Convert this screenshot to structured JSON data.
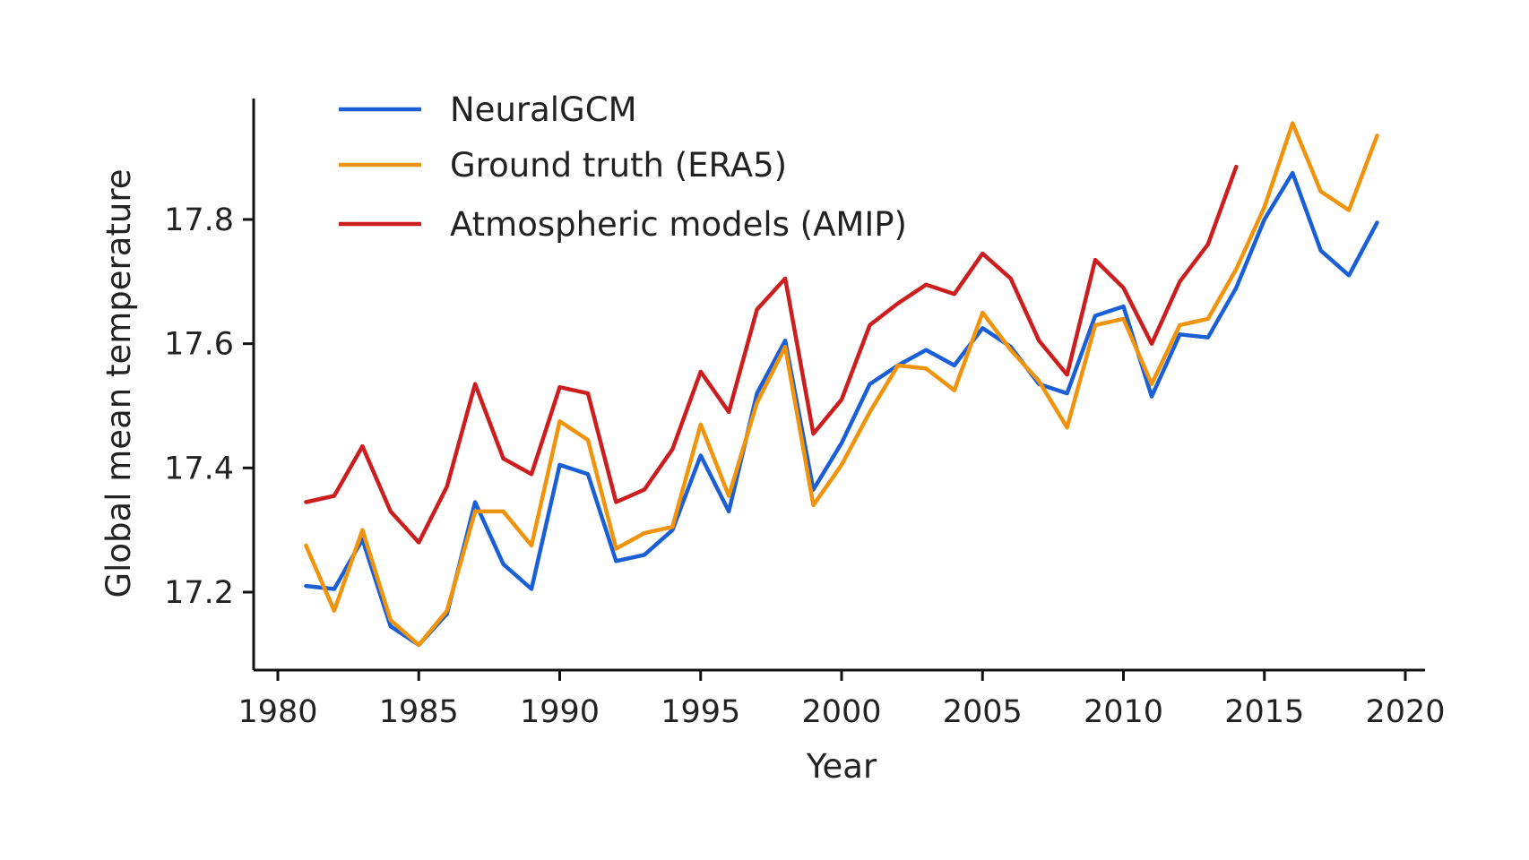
{
  "chart_data": {
    "type": "line",
    "xlabel": "Year",
    "ylabel": "Global mean temperature",
    "xlim": [
      1979,
      2021
    ],
    "ylim": [
      17.09,
      17.99
    ],
    "xticks": [
      1980,
      1985,
      1990,
      1995,
      2000,
      2005,
      2010,
      2015,
      2020
    ],
    "yticks": [
      17.2,
      17.4,
      17.6,
      17.8
    ],
    "grid": false,
    "legend_position": "top-left",
    "series": [
      {
        "name": "NeuralGCM",
        "color": "#1a5fd6",
        "x": [
          1981,
          1982,
          1983,
          1984,
          1985,
          1986,
          1987,
          1988,
          1989,
          1990,
          1991,
          1992,
          1993,
          1994,
          1995,
          1996,
          1997,
          1998,
          1999,
          2000,
          2001,
          2002,
          2003,
          2004,
          2005,
          2006,
          2007,
          2008,
          2009,
          2010,
          2011,
          2012,
          2013,
          2014,
          2015,
          2016,
          2017,
          2018,
          2019
        ],
        "values": [
          17.21,
          17.205,
          17.285,
          17.145,
          17.115,
          17.165,
          17.345,
          17.245,
          17.205,
          17.405,
          17.39,
          17.25,
          17.26,
          17.3,
          17.42,
          17.33,
          17.52,
          17.605,
          17.365,
          17.44,
          17.535,
          17.565,
          17.59,
          17.565,
          17.625,
          17.595,
          17.535,
          17.52,
          17.645,
          17.66,
          17.515,
          17.615,
          17.61,
          17.69,
          17.8,
          17.875,
          17.75,
          17.71,
          17.795
        ]
      },
      {
        "name": "Ground truth (ERA5)",
        "color": "#f0940e",
        "x": [
          1981,
          1982,
          1983,
          1984,
          1985,
          1986,
          1987,
          1988,
          1989,
          1990,
          1991,
          1992,
          1993,
          1994,
          1995,
          1996,
          1997,
          1998,
          1999,
          2000,
          2001,
          2002,
          2003,
          2004,
          2005,
          2006,
          2007,
          2008,
          2009,
          2010,
          2011,
          2012,
          2013,
          2014,
          2015,
          2016,
          2017,
          2018,
          2019
        ],
        "values": [
          17.275,
          17.17,
          17.3,
          17.155,
          17.115,
          17.17,
          17.33,
          17.33,
          17.275,
          17.475,
          17.445,
          17.27,
          17.295,
          17.305,
          17.47,
          17.355,
          17.505,
          17.595,
          17.34,
          17.405,
          17.49,
          17.565,
          17.56,
          17.525,
          17.65,
          17.59,
          17.54,
          17.465,
          17.63,
          17.64,
          17.535,
          17.63,
          17.64,
          17.72,
          17.82,
          17.955,
          17.845,
          17.815,
          17.935
        ]
      },
      {
        "name": "Atmospheric models (AMIP)",
        "color": "#cc1e1e",
        "x": [
          1981,
          1982,
          1983,
          1984,
          1985,
          1986,
          1987,
          1988,
          1989,
          1990,
          1991,
          1992,
          1993,
          1994,
          1995,
          1996,
          1997,
          1998,
          1999,
          2000,
          2001,
          2002,
          2003,
          2004,
          2005,
          2006,
          2007,
          2008,
          2009,
          2010,
          2011,
          2012,
          2013,
          2014
        ],
        "values": [
          17.345,
          17.355,
          17.435,
          17.33,
          17.28,
          17.37,
          17.535,
          17.415,
          17.39,
          17.53,
          17.52,
          17.345,
          17.365,
          17.43,
          17.555,
          17.49,
          17.655,
          17.705,
          17.455,
          17.51,
          17.63,
          17.665,
          17.695,
          17.68,
          17.745,
          17.705,
          17.605,
          17.55,
          17.735,
          17.69,
          17.6,
          17.7,
          17.76,
          17.885
        ]
      }
    ]
  }
}
